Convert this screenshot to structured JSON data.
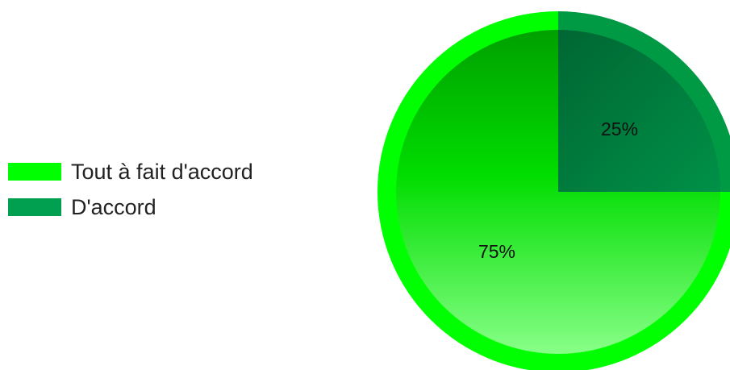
{
  "chart_data": {
    "type": "pie",
    "title": "",
    "series": [
      {
        "name": "Tout à fait d'accord",
        "value": 75,
        "label": "75%",
        "color": "#00ff00"
      },
      {
        "name": "D'accord",
        "value": 25,
        "label": "25%",
        "color": "#009944"
      }
    ],
    "legend_position": "left",
    "legend": [
      {
        "label": "Tout à fait d'accord",
        "color": "#00ff00"
      },
      {
        "label": "D'accord",
        "color": "#00a050"
      }
    ]
  }
}
